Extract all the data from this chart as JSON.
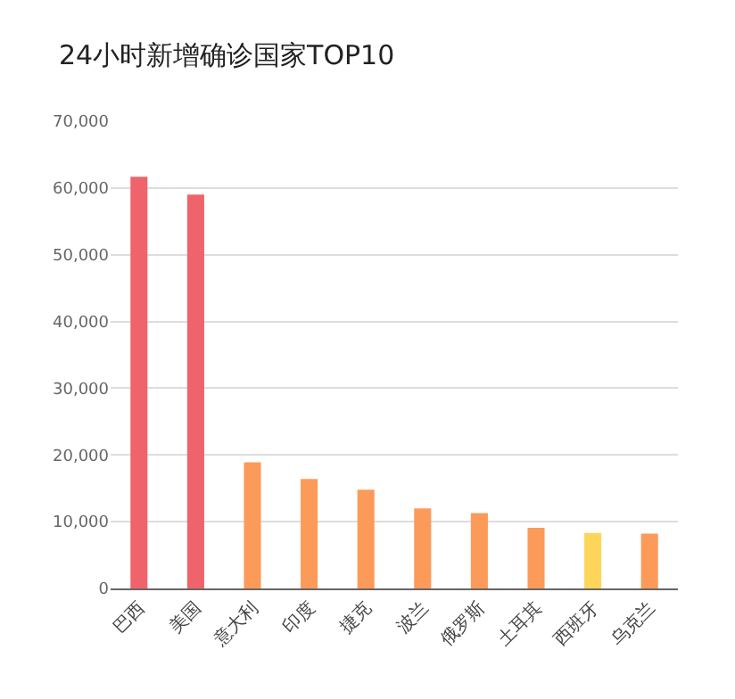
{
  "chart_data": {
    "type": "bar",
    "title": "24小时新增确诊国家TOP10",
    "categories": [
      "巴西",
      "美国",
      "意大利",
      "印度",
      "捷克",
      "波兰",
      "俄罗斯",
      "土耳其",
      "西班牙",
      "乌克兰"
    ],
    "values": [
      61700,
      59000,
      18900,
      16400,
      14800,
      12000,
      11300,
      9100,
      8300,
      8200
    ],
    "colors": [
      "#ef636b",
      "#ef636b",
      "#fc9a5a",
      "#fc9a5a",
      "#fc9a5a",
      "#fc9a5a",
      "#fc9a5a",
      "#fc9a5a",
      "#fdd55a",
      "#fc9a5a"
    ],
    "ylim": [
      0,
      70000
    ],
    "yticks": [
      0,
      {
        "value": 10000,
        "label": "10,000"
      },
      {
        "value": 20000,
        "label": "20,000"
      },
      {
        "value": 30000,
        "label": "30,000"
      },
      {
        "value": 40000,
        "label": "40,000"
      },
      {
        "value": 50000,
        "label": "50,000"
      },
      {
        "value": 60000,
        "label": "60,000"
      },
      {
        "value": 70000,
        "label": "70,000"
      }
    ],
    "grid": "y"
  }
}
